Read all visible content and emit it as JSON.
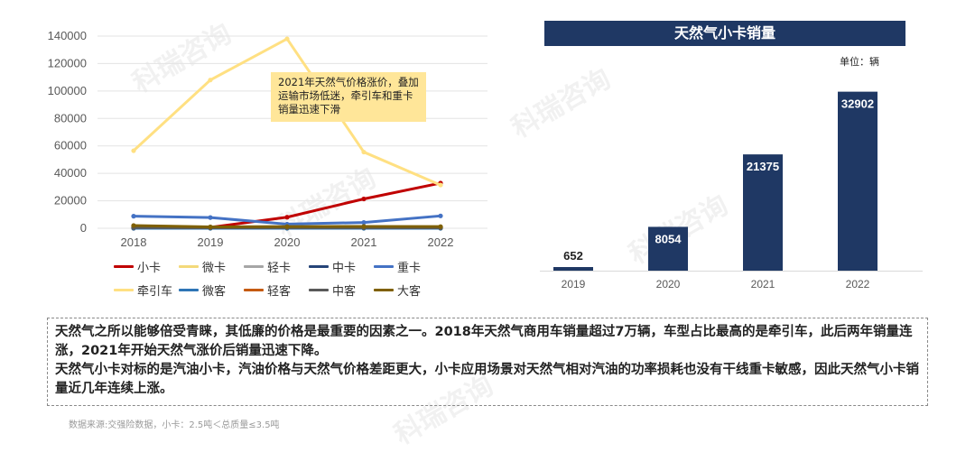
{
  "watermark": "科瑞咨询",
  "chart_data": [
    {
      "type": "line",
      "x": [
        "2018",
        "2019",
        "2020",
        "2021",
        "2022"
      ],
      "ylim": [
        0,
        140000
      ],
      "yticks": [
        "0",
        "20000",
        "40000",
        "60000",
        "80000",
        "100000",
        "120000",
        "140000"
      ],
      "grid": true,
      "legend_position": "bottom",
      "annotation": "2021年天然气价格涨价，叠加运输市场低迷，牵引车和重卡销量迅速下滑",
      "series": [
        {
          "name": "小卡",
          "color": "#c00000",
          "values": [
            0,
            652,
            8054,
            21375,
            32902
          ]
        },
        {
          "name": "微卡",
          "color": "#f3d97a",
          "values": [
            0,
            0,
            0,
            0,
            0
          ]
        },
        {
          "name": "轻卡",
          "color": "#a6a6a6",
          "values": [
            1200,
            800,
            900,
            900,
            700
          ]
        },
        {
          "name": "中卡",
          "color": "#264478",
          "values": [
            300,
            200,
            400,
            500,
            400
          ]
        },
        {
          "name": "重卡",
          "color": "#4472c4",
          "values": [
            8800,
            7800,
            3000,
            4200,
            9000
          ]
        },
        {
          "name": "牵引车",
          "color": "#ffe082",
          "values": [
            56500,
            108000,
            138000,
            55500,
            31500
          ]
        },
        {
          "name": "微客",
          "color": "#2e75b6",
          "values": [
            0,
            0,
            0,
            0,
            0
          ]
        },
        {
          "name": "轻客",
          "color": "#c55a11",
          "values": [
            1500,
            500,
            700,
            900,
            800
          ]
        },
        {
          "name": "中客",
          "color": "#595959",
          "values": [
            500,
            300,
            400,
            400,
            300
          ]
        },
        {
          "name": "大客",
          "color": "#7f6000",
          "values": [
            2000,
            1000,
            1200,
            1300,
            1200
          ]
        }
      ]
    },
    {
      "type": "bar",
      "title": "天然气小卡销量",
      "unit": "单位：辆",
      "categories": [
        "2019",
        "2020",
        "2021",
        "2022"
      ],
      "values": [
        652,
        8054,
        21375,
        32902
      ],
      "value_labels": [
        "652",
        "8054",
        "21375",
        "32902"
      ],
      "ylim": [
        0,
        34000
      ],
      "bar_color": "#1f3864",
      "grid": false
    }
  ],
  "summary": {
    "paragraph1": "天然气之所以能够倍受青睐，其低廉的价格是最重要的因素之一。2018年天然气商用车销量超过7万辆，车型占比最高的是牵引车，此后两年销量连涨，2021年开始天然气涨价后销量迅速下降。",
    "paragraph2": "天然气小卡对标的是汽油小卡，汽油价格与天然气价格差距更大，小卡应用场景对天然气相对汽油的功率损耗也没有干线重卡敏感，因此天然气小卡销量近几年连续上涨。"
  },
  "source": "数据来源:交强险数据，小卡：2.5吨＜总质量≤3.5吨"
}
